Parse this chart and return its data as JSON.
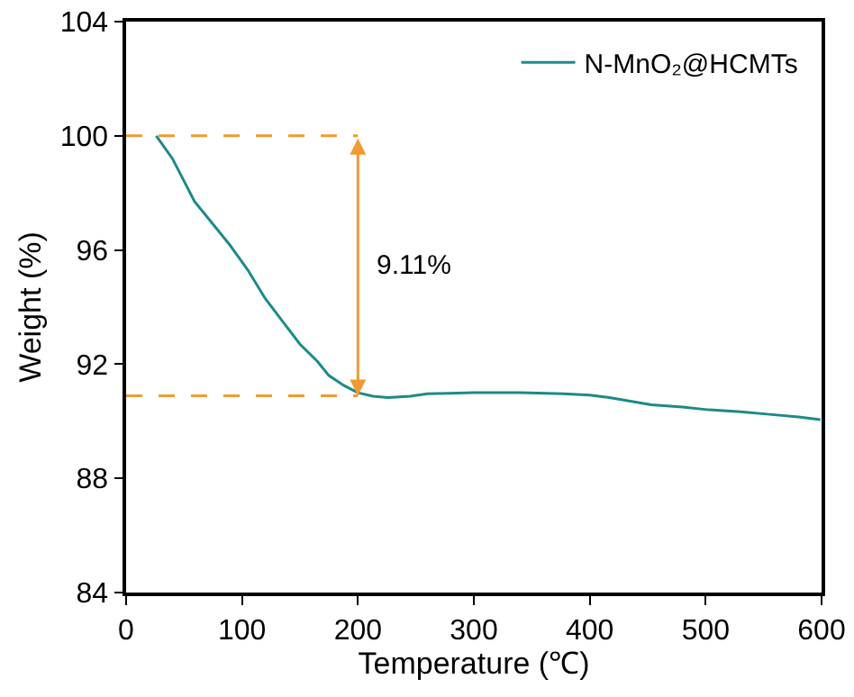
{
  "chart_data": {
    "type": "line",
    "xlabel": "Temperature (℃)",
    "ylabel": "Weight (%)",
    "xlim": [
      0,
      600
    ],
    "xticks": [
      0,
      100,
      200,
      300,
      400,
      500,
      600
    ],
    "ylim": [
      84,
      104
    ],
    "yticks": [
      84,
      88,
      92,
      96,
      100,
      104
    ],
    "series": [
      {
        "name": "N-MnO₂@HCMTs",
        "color": "#1b8b88",
        "x": [
          26,
          40,
          59,
          75,
          89,
          105,
          120,
          135,
          150,
          165,
          175,
          188,
          200,
          213,
          226,
          245,
          260,
          300,
          340,
          377,
          400,
          417,
          435,
          453,
          480,
          503,
          530,
          553,
          580,
          599
        ],
        "values": [
          100,
          99.2,
          97.7,
          96.9,
          96.2,
          95.3,
          94.3,
          93.5,
          92.7,
          92.1,
          91.6,
          91.25,
          91.0,
          90.88,
          90.83,
          90.88,
          90.96,
          91.0,
          91.0,
          90.96,
          90.92,
          90.83,
          90.7,
          90.58,
          90.5,
          90.4,
          90.33,
          90.25,
          90.15,
          90.06
        ]
      }
    ],
    "ref_lines": [
      {
        "axis": "y",
        "value": 100,
        "color": "#f39a2e",
        "line_style": "dashed"
      },
      {
        "axis": "y",
        "value": 90.89,
        "color": "#f39a2e",
        "line_style": "dashed"
      }
    ],
    "annotations": [
      "9.11%"
    ],
    "legend": "top right",
    "grid": false,
    "marker": "none",
    "line_style": "solid"
  }
}
